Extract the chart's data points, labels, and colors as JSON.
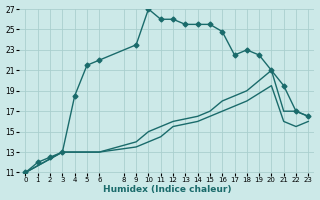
{
  "xlabel": "Humidex (Indice chaleur)",
  "ylabel": "",
  "bg_color": "#cce9e8",
  "grid_color": "#aacfce",
  "line_color": "#1a6b6b",
  "xlim": [
    -0.5,
    23.5
  ],
  "ylim": [
    11,
    27
  ],
  "xticks": [
    0,
    1,
    2,
    3,
    4,
    5,
    6,
    8,
    9,
    10,
    11,
    12,
    13,
    14,
    15,
    16,
    17,
    18,
    19,
    20,
    21,
    22,
    23
  ],
  "yticks": [
    11,
    13,
    15,
    17,
    19,
    21,
    23,
    25,
    27
  ],
  "series": [
    {
      "x": [
        0,
        1,
        2,
        3,
        4,
        5,
        6,
        9,
        10,
        11,
        12,
        13,
        14,
        15,
        16,
        17,
        18,
        19,
        20,
        21,
        22,
        23
      ],
      "y": [
        11,
        12,
        12.5,
        13,
        18.5,
        21.5,
        22,
        23.5,
        27,
        26,
        26,
        25.5,
        25.5,
        25.5,
        24.8,
        22.5,
        23,
        22.5,
        21,
        19.5,
        17,
        16.5
      ],
      "marker": "D",
      "markersize": 2.5,
      "linewidth": 1.0,
      "linestyle": "-"
    },
    {
      "x": [
        0,
        3,
        4,
        5,
        6,
        9,
        10,
        11,
        12,
        14,
        15,
        16,
        17,
        18,
        20,
        21,
        22,
        23
      ],
      "y": [
        11,
        13,
        13,
        13,
        13,
        14,
        15,
        15.5,
        16,
        16.5,
        17,
        18,
        18.5,
        19,
        21,
        17,
        17,
        16.5
      ],
      "marker": null,
      "markersize": 0,
      "linewidth": 1.0,
      "linestyle": "-"
    },
    {
      "x": [
        0,
        3,
        4,
        5,
        6,
        9,
        10,
        11,
        12,
        14,
        15,
        16,
        17,
        18,
        20,
        21,
        22,
        23
      ],
      "y": [
        11,
        13,
        13,
        13,
        13,
        13.5,
        14,
        14.5,
        15.5,
        16,
        16.5,
        17,
        17.5,
        18,
        19.5,
        16,
        15.5,
        16
      ],
      "marker": null,
      "markersize": 0,
      "linewidth": 1.0,
      "linestyle": "-"
    }
  ]
}
